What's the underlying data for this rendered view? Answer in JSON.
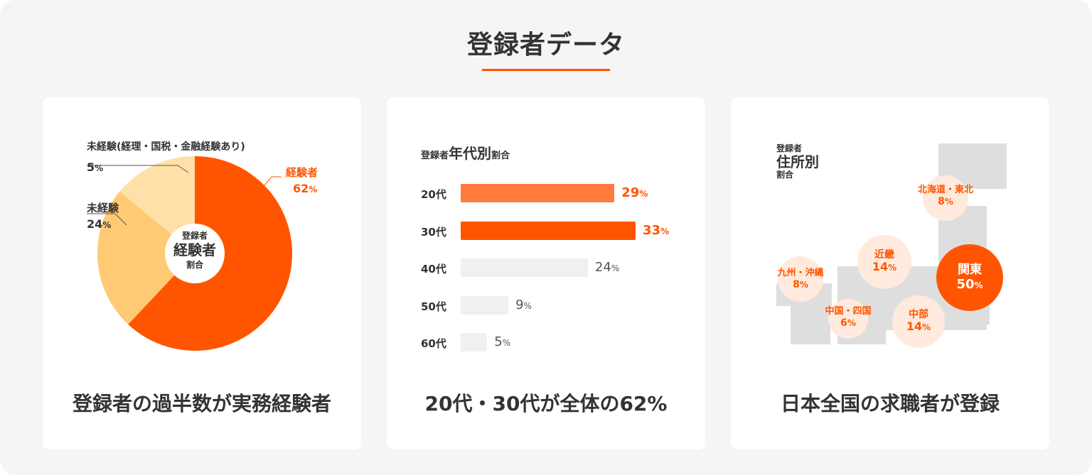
{
  "page": {
    "title": "登録者データ",
    "accent_color": "#ff5500"
  },
  "experience": {
    "caption": "登録者の過半数が実務経験者",
    "center_top": "登録者",
    "center_main": "経験者",
    "center_bottom": "割合",
    "label_experienced": "経験者",
    "value_experienced": "62",
    "label_inexperienced": "未経験",
    "value_inexperienced": "24",
    "label_inexperienced_related": "未経験(経理・国税・金融経験あり)",
    "value_inexperienced_related": "5",
    "pct": "%"
  },
  "age": {
    "caption": "20代・30代が全体の62%",
    "title_prefix": "登録者",
    "title_main": "年代別",
    "title_suffix": "割合",
    "pct": "%"
  },
  "area": {
    "caption": "日本全国の求職者が登録",
    "title_top": "登録者",
    "title_main": "住所別",
    "title_bottom": "割合",
    "pct": "%",
    "regions": [
      {
        "name": "北海道・東北",
        "value": "8"
      },
      {
        "name": "近畿",
        "value": "14"
      },
      {
        "name": "関東",
        "value": "50"
      },
      {
        "name": "九州・沖縄",
        "value": "8"
      },
      {
        "name": "中国・四国",
        "value": "6"
      },
      {
        "name": "中部",
        "value": "14"
      }
    ]
  },
  "chart_data": [
    {
      "type": "pie",
      "categories": [
        "経験者",
        "未経験",
        "未経験(経理・国税・金融経験あり)"
      ],
      "values": [
        62,
        24,
        5
      ],
      "unit": "%",
      "colors": [
        "#ff5500",
        "#ffca73",
        "#ffe0a8"
      ],
      "title": ""
    },
    {
      "type": "bar",
      "orientation": "horizontal",
      "categories": [
        "20代",
        "30代",
        "40代",
        "50代",
        "60代"
      ],
      "values": [
        29,
        33,
        24,
        9,
        5
      ],
      "unit": "%",
      "colors": [
        "#ff7a3d",
        "#ff5500",
        "#f0f0f0",
        "#f0f0f0",
        "#f0f0f0"
      ],
      "title": ""
    }
  ]
}
